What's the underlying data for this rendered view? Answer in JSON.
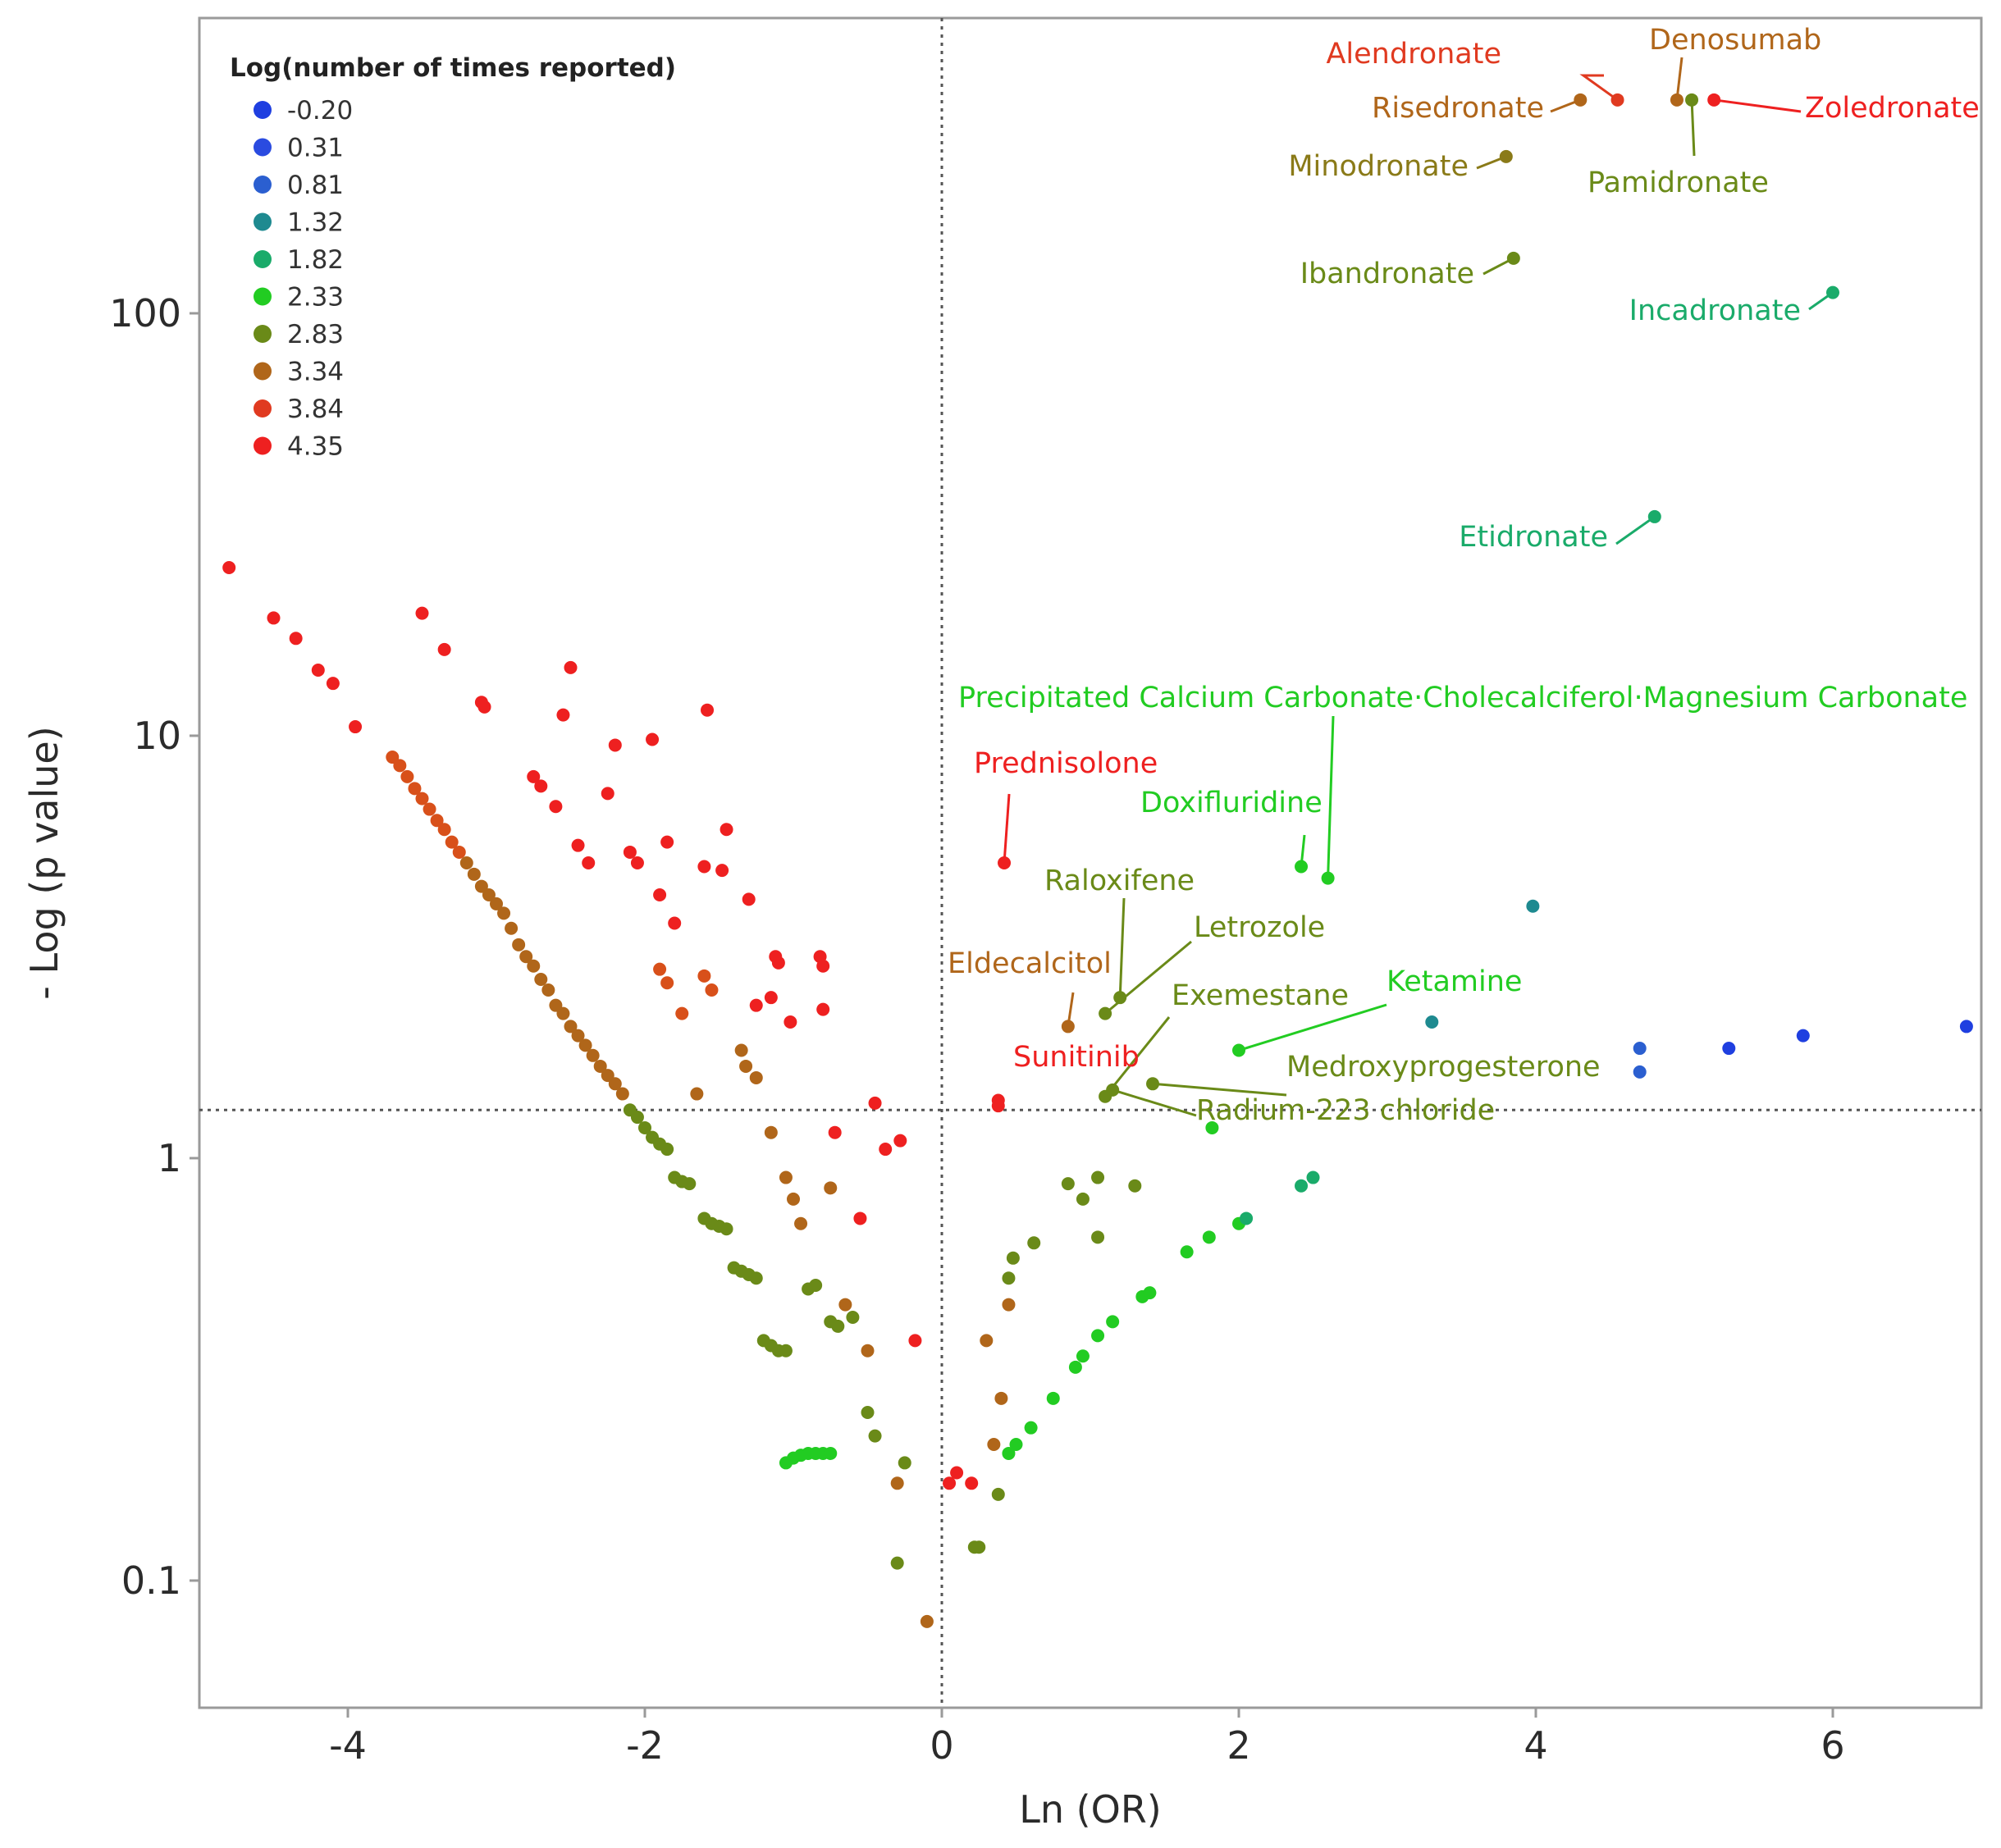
{
  "chart_data": {
    "type": "scatter",
    "title": "",
    "xlabel": "Ln (OR)",
    "ylabel": "- Log (p value)",
    "xlim": [
      -5.0,
      7.0
    ],
    "ylim": [
      0.05,
      500
    ],
    "y_scale": "log",
    "x_ticks": [
      -4,
      -2,
      0,
      2,
      4,
      6
    ],
    "x_tick_labels": [
      "-4",
      "-2",
      "0",
      "2",
      "4",
      "6"
    ],
    "y_ticks": [
      0.1,
      1,
      10,
      100
    ],
    "y_tick_labels": [
      "0.1",
      "1",
      "10",
      "100"
    ],
    "reference_lines": {
      "x": 0,
      "y": 1.3
    },
    "grid": false,
    "legend": {
      "title": "Log(number of times reported)",
      "position": "top-left",
      "entries": [
        {
          "label": "-0.20",
          "color": "#1f3fe0"
        },
        {
          "label": "0.31",
          "color": "#2a4be0"
        },
        {
          "label": "0.81",
          "color": "#2b5fd0"
        },
        {
          "label": "1.32",
          "color": "#1e8a90"
        },
        {
          "label": "1.82",
          "color": "#1aab6a"
        },
        {
          "label": "2.33",
          "color": "#22cc22"
        },
        {
          "label": "2.83",
          "color": "#6a8a18"
        },
        {
          "label": "3.34",
          "color": "#b0661a"
        },
        {
          "label": "3.84",
          "color": "#e03a20"
        },
        {
          "label": "4.35",
          "color": "#ee2020"
        }
      ]
    },
    "annotated_points": [
      {
        "name": "Alendronate",
        "x": 4.55,
        "y": 320,
        "color": "#e03a20"
      },
      {
        "name": "Denosumab",
        "x": 4.95,
        "y": 320,
        "color": "#b0661a"
      },
      {
        "name": "Risedronate",
        "x": 4.3,
        "y": 320,
        "color": "#b0661a"
      },
      {
        "name": "Zoledronate",
        "x": 5.2,
        "y": 320,
        "color": "#ee2020"
      },
      {
        "name": "Pamidronate",
        "x": 5.05,
        "y": 320,
        "color": "#6a8a18"
      },
      {
        "name": "Minodronate",
        "x": 3.8,
        "y": 235,
        "color": "#8a7a18"
      },
      {
        "name": "Ibandronate",
        "x": 3.85,
        "y": 135,
        "color": "#6a8a18"
      },
      {
        "name": "Incadronate",
        "x": 6.0,
        "y": 112,
        "color": "#1aab6a"
      },
      {
        "name": "Etidronate",
        "x": 4.8,
        "y": 33,
        "color": "#1aab6a"
      },
      {
        "name": "Precipitated Calcium Carbonate·Cholecalciferol·Magnesium Carbonate",
        "x": 2.6,
        "y": 4.6,
        "color": "#22cc22"
      },
      {
        "name": "Prednisolone",
        "x": 0.42,
        "y": 5.0,
        "color": "#ee2020"
      },
      {
        "name": "Doxifluridine",
        "x": 2.42,
        "y": 4.9,
        "color": "#22cc22"
      },
      {
        "name": "Raloxifene",
        "x": 1.2,
        "y": 2.4,
        "color": "#6a8a18"
      },
      {
        "name": "Letrozole",
        "x": 1.1,
        "y": 2.2,
        "color": "#6a8a18"
      },
      {
        "name": "Eldecalcitol",
        "x": 0.85,
        "y": 2.05,
        "color": "#b0661a"
      },
      {
        "name": "Exemestane",
        "x": 1.1,
        "y": 1.4,
        "color": "#6a8a18"
      },
      {
        "name": "Ketamine",
        "x": 2.0,
        "y": 1.8,
        "color": "#22cc22"
      },
      {
        "name": "Sunitinib",
        "x": 0.38,
        "y": 1.33,
        "color": "#ee2020"
      },
      {
        "name": "Medroxyprogesterone",
        "x": 1.42,
        "y": 1.5,
        "color": "#6a8a18"
      },
      {
        "name": "Radium-223 chloride",
        "x": 1.15,
        "y": 1.45,
        "color": "#6a8a18"
      }
    ],
    "series": [
      {
        "level": "4.35",
        "color": "#ee2020",
        "points": [
          [
            -4.8,
            25
          ],
          [
            -4.5,
            19
          ],
          [
            -4.35,
            17
          ],
          [
            -4.2,
            14.3
          ],
          [
            -4.1,
            13.3
          ],
          [
            -3.95,
            10.5
          ],
          [
            -3.5,
            19.5
          ],
          [
            -3.35,
            16
          ],
          [
            -3.1,
            12
          ],
          [
            -3.08,
            11.7
          ],
          [
            -2.75,
            8
          ],
          [
            -2.7,
            7.6
          ],
          [
            -2.6,
            6.8
          ],
          [
            -2.55,
            11.2
          ],
          [
            -2.5,
            14.5
          ],
          [
            -2.45,
            5.5
          ],
          [
            -2.38,
            5.0
          ],
          [
            -2.25,
            7.3
          ],
          [
            -2.2,
            9.5
          ],
          [
            -2.1,
            5.3
          ],
          [
            -2.05,
            5.0
          ],
          [
            -1.95,
            9.8
          ],
          [
            -1.9,
            4.2
          ],
          [
            -1.8,
            3.6
          ],
          [
            -1.85,
            5.6
          ],
          [
            -1.6,
            4.9
          ],
          [
            -1.58,
            11.5
          ],
          [
            -1.48,
            4.8
          ],
          [
            -1.45,
            6.0
          ],
          [
            -1.3,
            4.1
          ],
          [
            -1.25,
            2.3
          ],
          [
            -1.15,
            2.4
          ],
          [
            -1.12,
            3.0
          ],
          [
            -1.1,
            2.9
          ],
          [
            -1.02,
            2.1
          ],
          [
            -0.82,
            3.0
          ],
          [
            -0.8,
            2.85
          ],
          [
            -0.8,
            2.25
          ],
          [
            -0.72,
            1.15
          ],
          [
            -0.55,
            0.72
          ],
          [
            -0.45,
            1.35
          ],
          [
            -0.38,
            1.05
          ],
          [
            -0.28,
            1.1
          ],
          [
            -0.18,
            0.37
          ],
          [
            0.38,
            1.37
          ],
          [
            0.05,
            0.17
          ],
          [
            0.1,
            0.18
          ],
          [
            0.2,
            0.17
          ]
        ]
      },
      {
        "level": "3.84",
        "color": "#d8501a",
        "points": [
          [
            -3.7,
            8.9
          ],
          [
            -3.65,
            8.5
          ],
          [
            -3.6,
            8.0
          ],
          [
            -3.55,
            7.5
          ],
          [
            -3.5,
            7.1
          ],
          [
            -3.45,
            6.7
          ],
          [
            -3.4,
            6.3
          ],
          [
            -3.35,
            6.0
          ],
          [
            -3.3,
            5.6
          ],
          [
            -3.25,
            5.3
          ],
          [
            -1.9,
            2.8
          ],
          [
            -1.85,
            2.6
          ],
          [
            -1.75,
            2.2
          ],
          [
            -1.6,
            2.7
          ],
          [
            -1.55,
            2.5
          ]
        ]
      },
      {
        "level": "3.34",
        "color": "#b0661a",
        "points": [
          [
            -3.2,
            5.0
          ],
          [
            -3.15,
            4.7
          ],
          [
            -3.1,
            4.4
          ],
          [
            -3.05,
            4.2
          ],
          [
            -3.0,
            4.0
          ],
          [
            -2.95,
            3.8
          ],
          [
            -2.9,
            3.5
          ],
          [
            -2.85,
            3.2
          ],
          [
            -2.8,
            3.0
          ],
          [
            -2.75,
            2.85
          ],
          [
            -2.7,
            2.65
          ],
          [
            -2.65,
            2.5
          ],
          [
            -2.6,
            2.3
          ],
          [
            -2.55,
            2.2
          ],
          [
            -2.5,
            2.05
          ],
          [
            -2.45,
            1.95
          ],
          [
            -2.4,
            1.85
          ],
          [
            -2.35,
            1.75
          ],
          [
            -2.3,
            1.65
          ],
          [
            -2.25,
            1.57
          ],
          [
            -2.2,
            1.5
          ],
          [
            -2.15,
            1.42
          ],
          [
            -1.65,
            1.42
          ],
          [
            -1.35,
            1.8
          ],
          [
            -1.32,
            1.65
          ],
          [
            -1.25,
            1.55
          ],
          [
            -1.15,
            1.15
          ],
          [
            -1.05,
            0.9
          ],
          [
            -1.0,
            0.8
          ],
          [
            -0.95,
            0.7
          ],
          [
            -0.75,
            0.85
          ],
          [
            -0.65,
            0.45
          ],
          [
            -0.5,
            0.35
          ],
          [
            -0.3,
            0.17
          ],
          [
            -0.1,
            0.08
          ],
          [
            0.3,
            0.37
          ],
          [
            0.35,
            0.21
          ],
          [
            0.4,
            0.27
          ],
          [
            0.45,
            0.45
          ]
        ]
      },
      {
        "level": "2.83",
        "color": "#6a8a18",
        "points": [
          [
            -2.1,
            1.3
          ],
          [
            -2.05,
            1.25
          ],
          [
            -2.0,
            1.18
          ],
          [
            -1.95,
            1.12
          ],
          [
            -1.9,
            1.08
          ],
          [
            -1.85,
            1.05
          ],
          [
            -1.8,
            0.9
          ],
          [
            -1.75,
            0.88
          ],
          [
            -1.7,
            0.87
          ],
          [
            -1.6,
            0.72
          ],
          [
            -1.55,
            0.7
          ],
          [
            -1.5,
            0.69
          ],
          [
            -1.45,
            0.68
          ],
          [
            -1.4,
            0.55
          ],
          [
            -1.35,
            0.54
          ],
          [
            -1.3,
            0.53
          ],
          [
            -1.25,
            0.52
          ],
          [
            -1.2,
            0.37
          ],
          [
            -1.15,
            0.36
          ],
          [
            -1.1,
            0.35
          ],
          [
            -1.05,
            0.35
          ],
          [
            -0.9,
            0.49
          ],
          [
            -0.85,
            0.5
          ],
          [
            -0.75,
            0.41
          ],
          [
            -0.7,
            0.4
          ],
          [
            -0.6,
            0.42
          ],
          [
            -0.5,
            0.25
          ],
          [
            -0.45,
            0.22
          ],
          [
            -0.3,
            0.11
          ],
          [
            -0.25,
            0.19
          ],
          [
            0.22,
            0.12
          ],
          [
            0.25,
            0.12
          ],
          [
            0.38,
            0.16
          ],
          [
            0.45,
            0.52
          ],
          [
            0.48,
            0.58
          ],
          [
            0.62,
            0.63
          ],
          [
            0.85,
            0.87
          ],
          [
            0.95,
            0.8
          ],
          [
            1.05,
            0.9
          ],
          [
            1.3,
            0.86
          ],
          [
            1.05,
            0.65
          ]
        ]
      },
      {
        "level": "2.33",
        "color": "#22cc22",
        "points": [
          [
            -1.05,
            0.19
          ],
          [
            -1.0,
            0.195
          ],
          [
            -0.95,
            0.198
          ],
          [
            -0.9,
            0.2
          ],
          [
            -0.85,
            0.2
          ],
          [
            -0.8,
            0.2
          ],
          [
            -0.75,
            0.2
          ],
          [
            0.45,
            0.2
          ],
          [
            0.5,
            0.21
          ],
          [
            0.6,
            0.23
          ],
          [
            0.75,
            0.27
          ],
          [
            0.9,
            0.32
          ],
          [
            0.95,
            0.34
          ],
          [
            1.05,
            0.38
          ],
          [
            1.15,
            0.41
          ],
          [
            1.35,
            0.47
          ],
          [
            1.4,
            0.48
          ],
          [
            1.82,
            1.18
          ],
          [
            1.65,
            0.6
          ],
          [
            1.8,
            0.65
          ],
          [
            2.0,
            0.7
          ]
        ]
      },
      {
        "level": "1.82",
        "color": "#1aab6a",
        "points": [
          [
            2.05,
            0.72
          ],
          [
            2.42,
            0.86
          ],
          [
            2.5,
            0.9
          ]
        ]
      },
      {
        "level": "1.32",
        "color": "#1e8a90",
        "points": [
          [
            3.98,
            3.95
          ],
          [
            3.3,
            2.1
          ]
        ]
      },
      {
        "level": "0.81",
        "color": "#2b5fd0",
        "points": [
          [
            4.7,
            1.82
          ],
          [
            4.7,
            1.6
          ]
        ]
      },
      {
        "level": "-0.20",
        "color": "#1f3fe0",
        "points": [
          [
            5.3,
            1.82
          ],
          [
            5.8,
            1.95
          ],
          [
            6.9,
            2.05
          ]
        ]
      }
    ]
  }
}
